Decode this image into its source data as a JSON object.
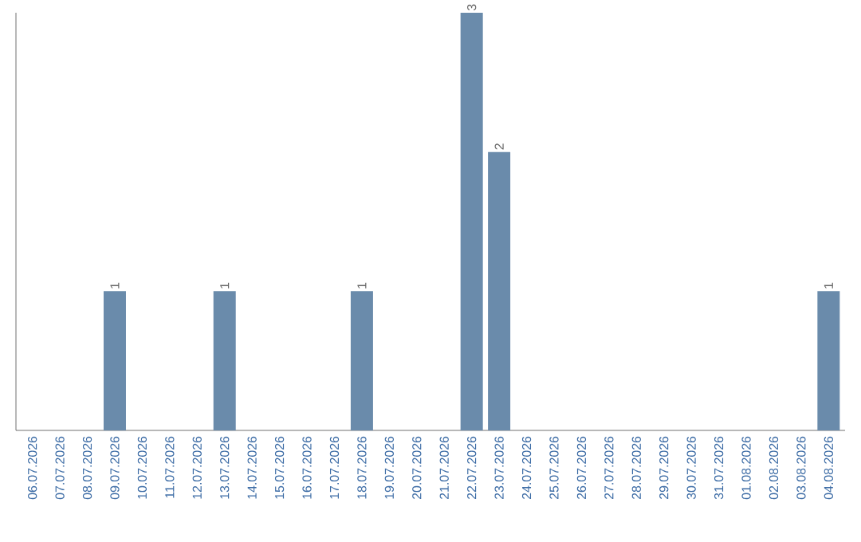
{
  "chart_data": {
    "type": "bar",
    "categories": [
      "06.07.2026",
      "07.07.2026",
      "08.07.2026",
      "09.07.2026",
      "10.07.2026",
      "11.07.2026",
      "12.07.2026",
      "13.07.2026",
      "14.07.2026",
      "15.07.2026",
      "16.07.2026",
      "17.07.2026",
      "18.07.2026",
      "19.07.2026",
      "20.07.2026",
      "21.07.2026",
      "22.07.2026",
      "23.07.2026",
      "24.07.2026",
      "25.07.2026",
      "26.07.2026",
      "27.07.2026",
      "28.07.2026",
      "29.07.2026",
      "30.07.2026",
      "31.07.2026",
      "01.08.2026",
      "02.08.2026",
      "03.08.2026",
      "04.08.2026"
    ],
    "values": [
      0,
      0,
      0,
      1,
      0,
      0,
      0,
      1,
      0,
      0,
      0,
      0,
      1,
      0,
      0,
      0,
      3,
      2,
      0,
      0,
      0,
      0,
      0,
      0,
      0,
      0,
      0,
      0,
      0,
      1
    ],
    "value_labels": [
      null,
      null,
      null,
      "1",
      null,
      null,
      null,
      "1",
      null,
      null,
      null,
      null,
      "1",
      null,
      null,
      null,
      "3",
      "2",
      null,
      null,
      null,
      null,
      null,
      null,
      null,
      null,
      null,
      null,
      null,
      "1"
    ],
    "color": "#6a8bab",
    "ylim": [
      0,
      3
    ],
    "tick_labels": "x"
  }
}
